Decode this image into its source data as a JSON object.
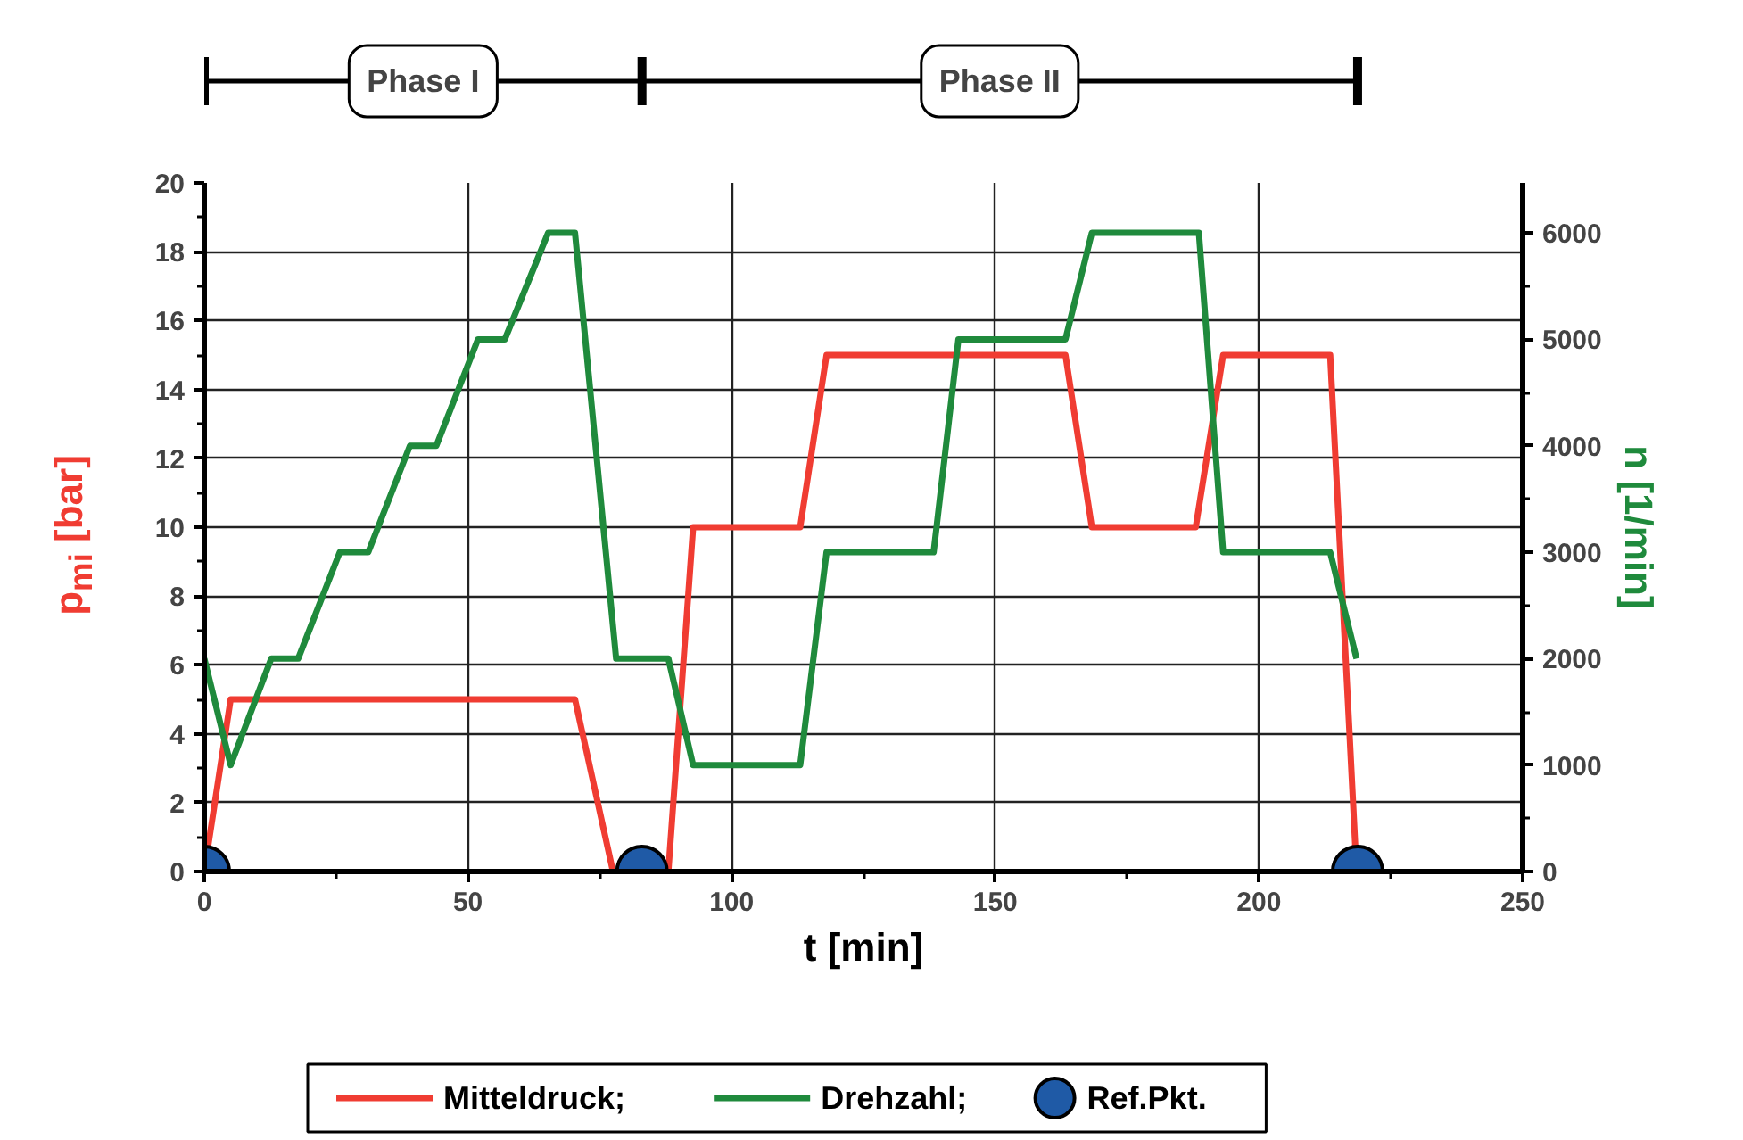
{
  "chart_data": {
    "type": "line",
    "xlabel": "t [min]",
    "ylabel": "p$_{mi}$ [bar]",
    "y2label": "n [1/min]",
    "annotations": [
      "Phase I",
      "Phase II"
    ],
    "series": [
      {
        "name": "Mitteldruck;",
        "color": "#f03c32",
        "x": [
          0,
          5,
          70.3,
          77.5,
          88,
          92.7,
          113,
          118,
          163.3,
          168.3,
          188,
          193.2,
          213.5,
          218.5
        ],
        "values": [
          0,
          5,
          5,
          0,
          0,
          10,
          10,
          15,
          15,
          10,
          10,
          15,
          15,
          0
        ]
      },
      {
        "name": "Drehzahl;",
        "color": "#1f8a3c",
        "axis": "y2",
        "x": [
          0,
          5,
          12.7,
          17.8,
          25.7,
          31.1,
          39,
          44,
          51.9,
          57,
          65.2,
          70.3,
          78.1,
          88,
          92.7,
          113,
          118,
          138.3,
          143,
          163.3,
          168.3,
          188.6,
          193.2,
          213.5,
          218.5
        ],
        "values": [
          2000,
          1000,
          2000,
          2000,
          3000,
          3000,
          4000,
          4000,
          5000,
          5000,
          6000,
          6000,
          2000,
          2000,
          1000,
          1000,
          3000,
          3000,
          5000,
          5000,
          6000,
          6000,
          3000,
          3000,
          2000
        ]
      },
      {
        "name": "Ref.Pkt.",
        "color": "#1f5aa6",
        "type": "scatter",
        "marker": "circle",
        "x": [
          0,
          83,
          218.7
        ],
        "values": [
          0,
          0,
          0
        ]
      }
    ],
    "xlim": [
      0,
      250
    ],
    "xticks": [
      0,
      {
        "value": 25,
        "label": null
      },
      50,
      {
        "value": 75,
        "label": null
      },
      100,
      {
        "value": 125,
        "label": null
      },
      150,
      {
        "value": 175,
        "label": null
      },
      200,
      {
        "value": 225,
        "label": null
      },
      250
    ],
    "ylim": [
      0,
      20
    ],
    "yticks": [
      0,
      {
        "value": 1,
        "label": null
      },
      2,
      {
        "value": 3,
        "label": null
      },
      4,
      {
        "value": 5,
        "label": null
      },
      6,
      {
        "value": 7,
        "label": null
      },
      8,
      {
        "value": 9,
        "label": null
      },
      10,
      {
        "value": 11,
        "label": null
      },
      12,
      {
        "value": 13,
        "label": null
      },
      14,
      {
        "value": 15,
        "label": null
      },
      16,
      {
        "value": 17,
        "label": null
      },
      18,
      {
        "value": 19,
        "label": null
      },
      20
    ],
    "y2lim": [
      0,
      6470
    ],
    "y2ticks": [
      0,
      {
        "value": 500,
        "label": null
      },
      1000,
      {
        "value": 1500,
        "label": null
      },
      2000,
      {
        "value": 2500,
        "label": null
      },
      3000,
      {
        "value": 3500,
        "label": null
      },
      4000,
      {
        "value": 4500,
        "label": null
      },
      5000,
      {
        "value": 5500,
        "label": null
      },
      6000
    ],
    "grid": true,
    "legend": "bottom",
    "line_style": "solid"
  }
}
